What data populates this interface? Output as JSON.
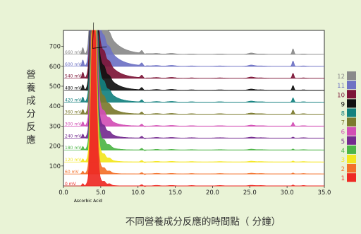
{
  "chart_data": {
    "type": "line",
    "title": "",
    "ylabel": "營養成分反應",
    "xlabel": "不同營養成分反應的時間點（ 分鐘）",
    "xlim": [
      0.0,
      35.0
    ],
    "ylim": [
      0,
      780
    ],
    "x_ticks": [
      "0.0",
      "5.0",
      "10.0",
      "15.0",
      "20.0",
      "25.0",
      "30.0",
      "35.0"
    ],
    "x_tick_values": [
      0,
      5,
      10,
      15,
      20,
      25,
      30,
      35
    ],
    "y_ticks": [
      "100",
      "200",
      "300",
      "400",
      "500",
      "600",
      "700"
    ],
    "y_tick_values": [
      100,
      200,
      300,
      400,
      500,
      600,
      700
    ],
    "annotation": "Ascorbic Acid",
    "annotation_x": 3.3,
    "grid": false,
    "legend_position": "right",
    "series": [
      {
        "id": "1",
        "label": "0 mV",
        "baseline": 0,
        "color": "#ee2a24"
      },
      {
        "id": "2",
        "label": "60 mV",
        "baseline": 60,
        "color": "#f3712a"
      },
      {
        "id": "3",
        "label": "120 mV",
        "baseline": 120,
        "color": "#f3e61f"
      },
      {
        "id": "4",
        "label": "180 mV",
        "baseline": 180,
        "color": "#4db547"
      },
      {
        "id": "5",
        "label": "240 mV",
        "baseline": 240,
        "color": "#742b8f"
      },
      {
        "id": "6",
        "label": "300 mV",
        "baseline": 300,
        "color": "#d24fb5"
      },
      {
        "id": "7",
        "label": "360 mV",
        "baseline": 360,
        "color": "#7b7a2e"
      },
      {
        "id": "8",
        "label": "420 mV",
        "baseline": 420,
        "color": "#14817f"
      },
      {
        "id": "9",
        "label": "480 mV",
        "baseline": 480,
        "color": "#111111"
      },
      {
        "id": "10",
        "label": "540 mV",
        "baseline": 540,
        "color": "#7d1537"
      },
      {
        "id": "11",
        "label": "600 mV",
        "baseline": 600,
        "color": "#6e72c4"
      },
      {
        "id": "12",
        "label": "660 mV",
        "baseline": 660,
        "color": "#8a8a8a"
      }
    ]
  }
}
